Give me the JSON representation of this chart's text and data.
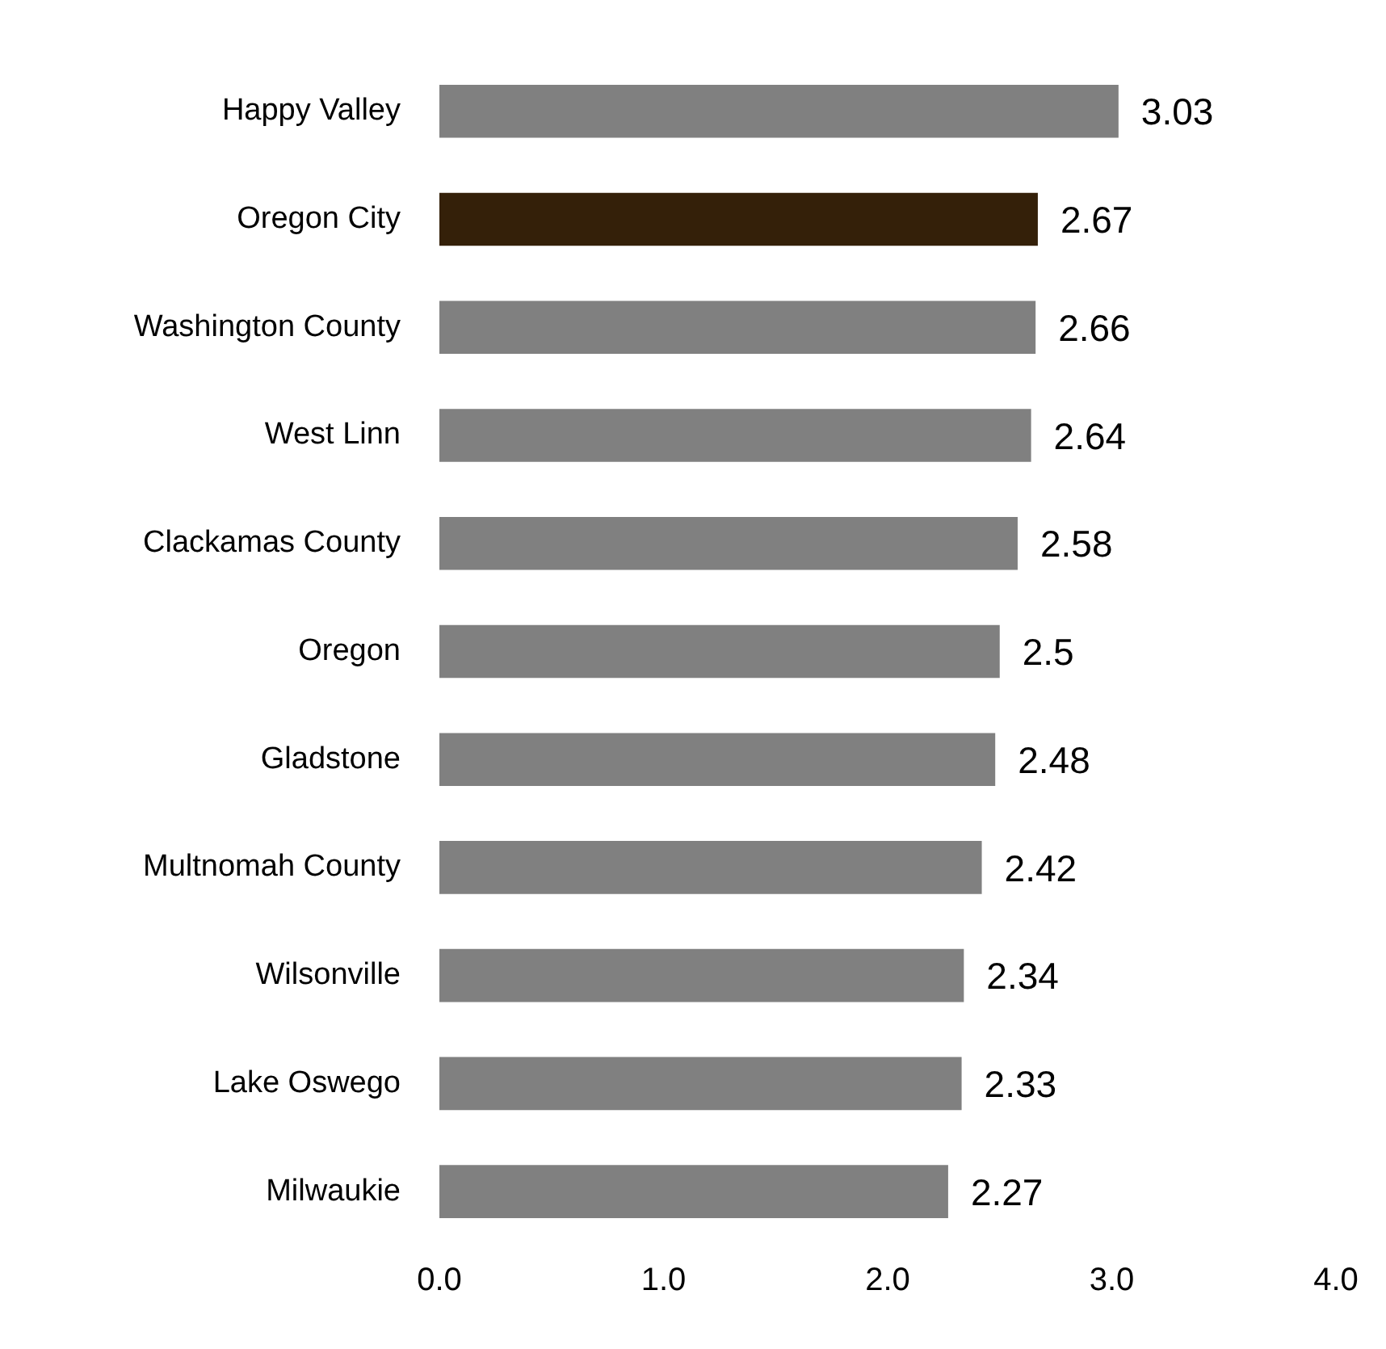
{
  "chart_data": {
    "type": "bar",
    "orientation": "horizontal",
    "categories": [
      "Happy Valley",
      "Oregon City",
      "Washington County",
      "West Linn",
      "Clackamas County",
      "Oregon",
      "Gladstone",
      "Multnomah County",
      "Wilsonville",
      "Lake Oswego",
      "Milwaukie"
    ],
    "values": [
      3.03,
      2.67,
      2.66,
      2.64,
      2.58,
      2.5,
      2.48,
      2.42,
      2.34,
      2.33,
      2.27
    ],
    "colors": [
      "#808080",
      "#342009",
      "#808080",
      "#808080",
      "#808080",
      "#808080",
      "#808080",
      "#808080",
      "#808080",
      "#808080",
      "#808080"
    ],
    "xlim": [
      0,
      4
    ],
    "xticks": [
      {
        "value": 0,
        "label": "0.0"
      },
      {
        "value": 1,
        "label": "1.0"
      },
      {
        "value": 2,
        "label": "2.0"
      },
      {
        "value": 3,
        "label": "3.0"
      },
      {
        "value": 4,
        "label": "4.0"
      }
    ],
    "data_labels": true,
    "grid": false,
    "legend": false
  }
}
